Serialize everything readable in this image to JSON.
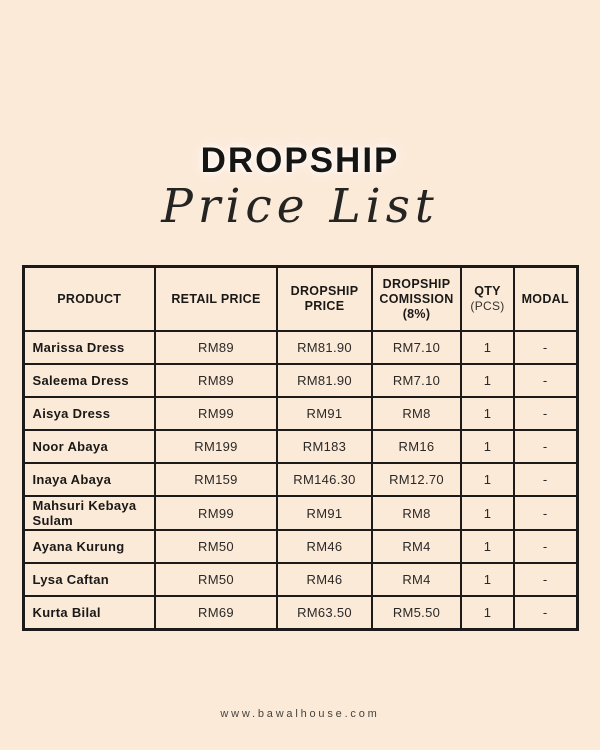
{
  "header": {
    "title": "DROPSHIP",
    "subtitle": "Price List"
  },
  "table": {
    "headers": [
      {
        "main": "PRODUCT",
        "sub": ""
      },
      {
        "main": "RETAIL PRICE",
        "sub": ""
      },
      {
        "main": "DROPSHIP\nPRICE",
        "sub": ""
      },
      {
        "main": "DROPSHIP\nCOMISSION\n(8%)",
        "sub": ""
      },
      {
        "main": "QTY",
        "sub": "(PCS)"
      },
      {
        "main": "MODAL",
        "sub": ""
      }
    ],
    "rows": [
      [
        "Marissa Dress",
        "RM89",
        "RM81.90",
        "RM7.10",
        "1",
        "-"
      ],
      [
        "Saleema Dress",
        "RM89",
        "RM81.90",
        "RM7.10",
        "1",
        "-"
      ],
      [
        "Aisya Dress",
        "RM99",
        "RM91",
        "RM8",
        "1",
        "-"
      ],
      [
        "Noor Abaya",
        "RM199",
        "RM183",
        "RM16",
        "1",
        "-"
      ],
      [
        "Inaya Abaya",
        "RM159",
        "RM146.30",
        "RM12.70",
        "1",
        "-"
      ],
      [
        "Mahsuri Kebaya Sulam",
        "RM99",
        "RM91",
        "RM8",
        "1",
        "-"
      ],
      [
        "Ayana Kurung",
        "RM50",
        "RM46",
        "RM4",
        "1",
        "-"
      ],
      [
        "Lysa Caftan",
        "RM50",
        "RM46",
        "RM4",
        "1",
        "-"
      ],
      [
        "Kurta Bilal",
        "RM69",
        "RM63.50",
        "RM5.50",
        "1",
        "-"
      ]
    ]
  },
  "footer": {
    "url": "www.bawalhouse.com"
  },
  "colors": {
    "background": "#fcead9",
    "border": "#1c1b19",
    "title_text": "#151513",
    "body_text": "#2a2926",
    "footer_text": "#45443f"
  }
}
